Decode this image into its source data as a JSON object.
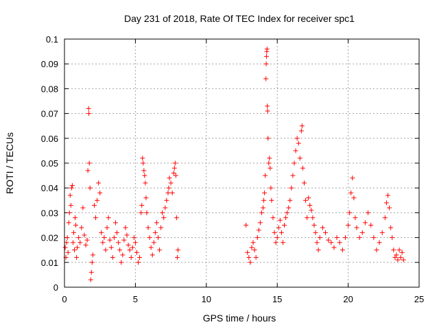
{
  "chart_data": {
    "type": "scatter",
    "title": "Day 231 of 2018, Rate Of TEC Index for receiver spc1",
    "xlabel": "GPS time / hours",
    "ylabel": "ROTI / TECUs",
    "xlim": [
      0,
      25
    ],
    "ylim": [
      0,
      0.1
    ],
    "x_ticks": [
      0,
      5,
      10,
      15,
      20,
      25
    ],
    "y_ticks": [
      0,
      0.01,
      0.02,
      0.03,
      0.04,
      0.05,
      0.06,
      0.07,
      0.08,
      0.09,
      0.1
    ],
    "x_tick_labels": [
      "0",
      "5",
      "10",
      "15",
      "20",
      "25"
    ],
    "y_tick_labels": [
      "0",
      "0.01",
      "0.02",
      "0.03",
      "0.04",
      "0.05",
      "0.06",
      "0.07",
      "0.08",
      "0.09",
      "0.1"
    ],
    "grid": true,
    "marker": "+",
    "color": "#ff0000",
    "series": [
      {
        "name": "ROTI",
        "points": [
          [
            0.05,
            0.016
          ],
          [
            0.1,
            0.012
          ],
          [
            0.15,
            0.018
          ],
          [
            0.2,
            0.02
          ],
          [
            0.25,
            0.014
          ],
          [
            0.3,
            0.026
          ],
          [
            0.35,
            0.03
          ],
          [
            0.4,
            0.037
          ],
          [
            0.45,
            0.033
          ],
          [
            0.5,
            0.04
          ],
          [
            0.55,
            0.041
          ],
          [
            0.6,
            0.018
          ],
          [
            0.65,
            0.022
          ],
          [
            0.7,
            0.015
          ],
          [
            0.75,
            0.028
          ],
          [
            0.8,
            0.025
          ],
          [
            0.85,
            0.012
          ],
          [
            0.9,
            0.016
          ],
          [
            1.0,
            0.02
          ],
          [
            1.1,
            0.018
          ],
          [
            1.2,
            0.024
          ],
          [
            1.3,
            0.032
          ],
          [
            1.4,
            0.021
          ],
          [
            1.5,
            0.017
          ],
          [
            1.6,
            0.019
          ],
          [
            1.65,
            0.047
          ],
          [
            1.7,
            0.072
          ],
          [
            1.72,
            0.07
          ],
          [
            1.75,
            0.05
          ],
          [
            1.8,
            0.04
          ],
          [
            1.85,
            0.003
          ],
          [
            1.9,
            0.006
          ],
          [
            1.95,
            0.01
          ],
          [
            2.0,
            0.013
          ],
          [
            2.1,
            0.033
          ],
          [
            2.2,
            0.028
          ],
          [
            2.3,
            0.035
          ],
          [
            2.4,
            0.042
          ],
          [
            2.5,
            0.038
          ],
          [
            2.6,
            0.022
          ],
          [
            2.7,
            0.018
          ],
          [
            2.8,
            0.02
          ],
          [
            2.9,
            0.015
          ],
          [
            3.0,
            0.024
          ],
          [
            3.1,
            0.028
          ],
          [
            3.2,
            0.019
          ],
          [
            3.3,
            0.016
          ],
          [
            3.4,
            0.012
          ],
          [
            3.5,
            0.02
          ],
          [
            3.6,
            0.026
          ],
          [
            3.7,
            0.022
          ],
          [
            3.8,
            0.018
          ],
          [
            3.9,
            0.015
          ],
          [
            4.0,
            0.01
          ],
          [
            4.1,
            0.013
          ],
          [
            4.2,
            0.019
          ],
          [
            4.3,
            0.024
          ],
          [
            4.4,
            0.021
          ],
          [
            4.5,
            0.017
          ],
          [
            4.6,
            0.015
          ],
          [
            4.7,
            0.012
          ],
          [
            4.8,
            0.016
          ],
          [
            4.9,
            0.02
          ],
          [
            5.0,
            0.018
          ],
          [
            5.1,
            0.014
          ],
          [
            5.2,
            0.01
          ],
          [
            5.3,
            0.012
          ],
          [
            5.4,
            0.03
          ],
          [
            5.45,
            0.033
          ],
          [
            5.5,
            0.052
          ],
          [
            5.55,
            0.05
          ],
          [
            5.6,
            0.047
          ],
          [
            5.65,
            0.045
          ],
          [
            5.7,
            0.042
          ],
          [
            5.75,
            0.036
          ],
          [
            5.8,
            0.03
          ],
          [
            5.9,
            0.024
          ],
          [
            6.0,
            0.02
          ],
          [
            6.1,
            0.016
          ],
          [
            6.2,
            0.013
          ],
          [
            6.3,
            0.018
          ],
          [
            6.4,
            0.022
          ],
          [
            6.5,
            0.026
          ],
          [
            6.6,
            0.02
          ],
          [
            6.7,
            0.015
          ],
          [
            6.8,
            0.024
          ],
          [
            6.9,
            0.03
          ],
          [
            7.0,
            0.028
          ],
          [
            7.1,
            0.032
          ],
          [
            7.2,
            0.035
          ],
          [
            7.3,
            0.038
          ],
          [
            7.35,
            0.04
          ],
          [
            7.4,
            0.044
          ],
          [
            7.5,
            0.042
          ],
          [
            7.6,
            0.038
          ],
          [
            7.7,
            0.046
          ],
          [
            7.75,
            0.048
          ],
          [
            7.8,
            0.05
          ],
          [
            7.85,
            0.045
          ],
          [
            7.9,
            0.028
          ],
          [
            7.95,
            0.012
          ],
          [
            8.0,
            0.015
          ],
          [
            12.8,
            0.025
          ],
          [
            12.9,
            0.014
          ],
          [
            13.0,
            0.012
          ],
          [
            13.1,
            0.01
          ],
          [
            13.2,
            0.016
          ],
          [
            13.3,
            0.018
          ],
          [
            13.4,
            0.015
          ],
          [
            13.5,
            0.012
          ],
          [
            13.6,
            0.02
          ],
          [
            13.7,
            0.023
          ],
          [
            13.8,
            0.026
          ],
          [
            13.9,
            0.03
          ],
          [
            14.0,
            0.032
          ],
          [
            14.05,
            0.035
          ],
          [
            14.1,
            0.038
          ],
          [
            14.15,
            0.045
          ],
          [
            14.2,
            0.084
          ],
          [
            14.22,
            0.09
          ],
          [
            14.24,
            0.093
          ],
          [
            14.26,
            0.095
          ],
          [
            14.28,
            0.096
          ],
          [
            14.3,
            0.073
          ],
          [
            14.32,
            0.071
          ],
          [
            14.35,
            0.06
          ],
          [
            14.4,
            0.05
          ],
          [
            14.45,
            0.052
          ],
          [
            14.5,
            0.048
          ],
          [
            14.55,
            0.04
          ],
          [
            14.6,
            0.035
          ],
          [
            14.7,
            0.028
          ],
          [
            14.8,
            0.022
          ],
          [
            14.9,
            0.018
          ],
          [
            15.0,
            0.02
          ],
          [
            15.1,
            0.024
          ],
          [
            15.2,
            0.027
          ],
          [
            15.3,
            0.022
          ],
          [
            15.4,
            0.018
          ],
          [
            15.5,
            0.025
          ],
          [
            15.6,
            0.028
          ],
          [
            15.7,
            0.03
          ],
          [
            15.8,
            0.032
          ],
          [
            15.9,
            0.035
          ],
          [
            16.0,
            0.04
          ],
          [
            16.1,
            0.045
          ],
          [
            16.2,
            0.05
          ],
          [
            16.3,
            0.055
          ],
          [
            16.4,
            0.06
          ],
          [
            16.5,
            0.058
          ],
          [
            16.6,
            0.052
          ],
          [
            16.7,
            0.063
          ],
          [
            16.75,
            0.065
          ],
          [
            16.8,
            0.048
          ],
          [
            16.9,
            0.042
          ],
          [
            17.0,
            0.035
          ],
          [
            17.1,
            0.028
          ],
          [
            17.2,
            0.036
          ],
          [
            17.3,
            0.033
          ],
          [
            17.4,
            0.031
          ],
          [
            17.5,
            0.028
          ],
          [
            17.6,
            0.025
          ],
          [
            17.7,
            0.022
          ],
          [
            17.8,
            0.018
          ],
          [
            17.9,
            0.015
          ],
          [
            18.0,
            0.02
          ],
          [
            18.2,
            0.024
          ],
          [
            18.4,
            0.022
          ],
          [
            18.6,
            0.019
          ],
          [
            18.8,
            0.018
          ],
          [
            19.0,
            0.016
          ],
          [
            19.2,
            0.02
          ],
          [
            19.4,
            0.018
          ],
          [
            19.6,
            0.015
          ],
          [
            19.8,
            0.02
          ],
          [
            20.0,
            0.025
          ],
          [
            20.1,
            0.03
          ],
          [
            20.2,
            0.038
          ],
          [
            20.3,
            0.044
          ],
          [
            20.4,
            0.036
          ],
          [
            20.5,
            0.028
          ],
          [
            20.6,
            0.024
          ],
          [
            20.8,
            0.02
          ],
          [
            21.0,
            0.022
          ],
          [
            21.2,
            0.026
          ],
          [
            21.4,
            0.03
          ],
          [
            21.6,
            0.025
          ],
          [
            21.8,
            0.02
          ],
          [
            22.0,
            0.015
          ],
          [
            22.2,
            0.018
          ],
          [
            22.4,
            0.022
          ],
          [
            22.6,
            0.028
          ],
          [
            22.7,
            0.034
          ],
          [
            22.8,
            0.037
          ],
          [
            22.9,
            0.032
          ],
          [
            23.0,
            0.024
          ],
          [
            23.1,
            0.02
          ],
          [
            23.2,
            0.015
          ],
          [
            23.3,
            0.012
          ],
          [
            23.4,
            0.013
          ],
          [
            23.5,
            0.011
          ],
          [
            23.6,
            0.015
          ],
          [
            23.7,
            0.012
          ],
          [
            23.8,
            0.014
          ],
          [
            23.9,
            0.011
          ]
        ]
      }
    ]
  }
}
